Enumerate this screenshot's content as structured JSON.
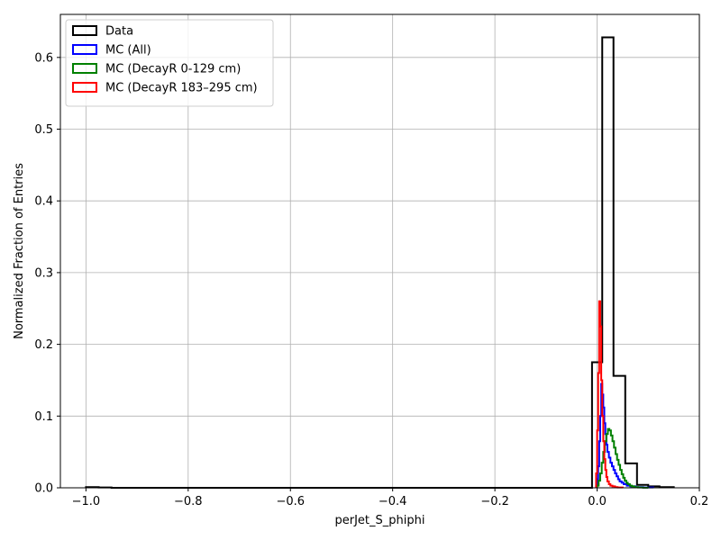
{
  "chart_data": {
    "type": "histogram",
    "title": "",
    "xlabel": "perJet_S_phiphi",
    "ylabel": "Normalized Fraction of Entries",
    "xlim": [
      -1.05,
      0.2
    ],
    "ylim": [
      0.0,
      0.66
    ],
    "x_ticks": [
      -1.0,
      -0.8,
      -0.6,
      -0.4,
      -0.2,
      0.0,
      0.2
    ],
    "x_tick_labels": [
      "−1.0",
      "−0.8",
      "−0.6",
      "−0.4",
      "−0.2",
      "0.0",
      "0.2"
    ],
    "y_ticks": [
      0.0,
      0.1,
      0.2,
      0.3,
      0.4,
      0.5,
      0.6
    ],
    "y_tick_labels": [
      "0.0",
      "0.1",
      "0.2",
      "0.3",
      "0.4",
      "0.5",
      "0.6"
    ],
    "grid": true,
    "legend_position": "top-left",
    "series": [
      {
        "name": "Data",
        "color": "#000000",
        "edges": [
          -1.0,
          -0.975,
          -0.95,
          -0.01,
          0.01,
          0.032,
          0.055,
          0.078,
          0.1,
          0.122,
          0.15
        ],
        "values": [
          0.001,
          0.0005,
          0.0,
          0.175,
          0.628,
          0.156,
          0.034,
          0.004,
          0.002,
          0.001
        ]
      },
      {
        "name": "MC (All)",
        "color": "#0000ff",
        "edges": [
          -0.002,
          0.0,
          0.002,
          0.004,
          0.006,
          0.008,
          0.01,
          0.012,
          0.014,
          0.016,
          0.018,
          0.02,
          0.023,
          0.026,
          0.029,
          0.032,
          0.035,
          0.038,
          0.041,
          0.044,
          0.048,
          0.052,
          0.058,
          0.065,
          0.075,
          0.09,
          0.11
        ],
        "values": [
          0.003,
          0.012,
          0.03,
          0.065,
          0.1,
          0.145,
          0.13,
          0.112,
          0.09,
          0.075,
          0.06,
          0.05,
          0.042,
          0.035,
          0.03,
          0.025,
          0.02,
          0.016,
          0.012,
          0.009,
          0.007,
          0.005,
          0.003,
          0.002,
          0.001,
          0.0005
        ]
      },
      {
        "name": "MC (DecayR 0-129 cm)",
        "color": "#008000",
        "edges": [
          0.0,
          0.003,
          0.006,
          0.009,
          0.012,
          0.015,
          0.018,
          0.021,
          0.024,
          0.027,
          0.03,
          0.033,
          0.036,
          0.039,
          0.042,
          0.045,
          0.048,
          0.051,
          0.054,
          0.057,
          0.06,
          0.064,
          0.068,
          0.073,
          0.08,
          0.09,
          0.1
        ],
        "values": [
          0.003,
          0.01,
          0.02,
          0.035,
          0.05,
          0.065,
          0.075,
          0.082,
          0.08,
          0.073,
          0.065,
          0.056,
          0.047,
          0.039,
          0.032,
          0.025,
          0.019,
          0.014,
          0.01,
          0.007,
          0.005,
          0.003,
          0.002,
          0.001,
          0.0005,
          0.0002
        ]
      },
      {
        "name": "MC (DecayR 183–295 cm)",
        "color": "#ff0000",
        "edges": [
          -0.002,
          0.0,
          0.002,
          0.004,
          0.006,
          0.008,
          0.01,
          0.012,
          0.014,
          0.016,
          0.018,
          0.02,
          0.023,
          0.026,
          0.03,
          0.035,
          0.04,
          0.05
        ],
        "values": [
          0.02,
          0.08,
          0.16,
          0.26,
          0.225,
          0.15,
          0.1,
          0.065,
          0.04,
          0.025,
          0.015,
          0.009,
          0.005,
          0.003,
          0.002,
          0.001,
          0.0005
        ]
      }
    ]
  }
}
